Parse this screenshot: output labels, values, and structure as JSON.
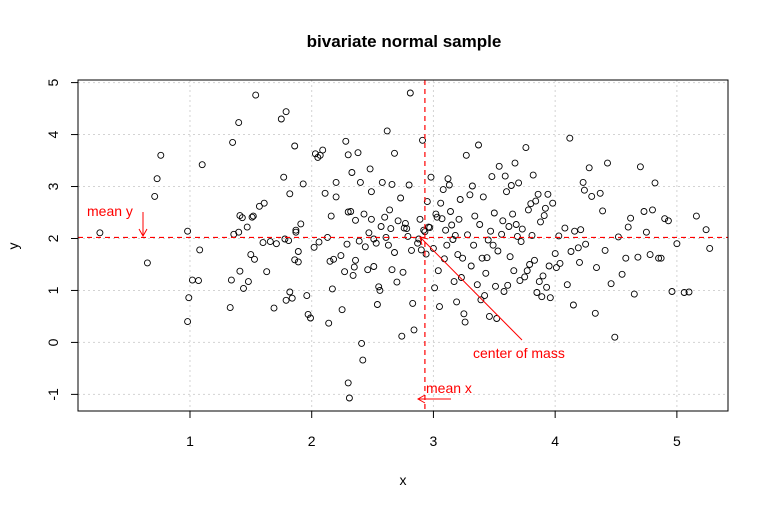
{
  "chart_data": {
    "type": "scatter",
    "title": "bivariate normal sample",
    "xlabel": "x",
    "ylabel": "y",
    "xlim": [
      0.08,
      5.42
    ],
    "ylim": [
      -1.32,
      5.05
    ],
    "x_ticks": [
      1,
      2,
      3,
      4,
      5
    ],
    "x_tick_labels": [
      "1",
      "2",
      "3",
      "4",
      "5"
    ],
    "y_ticks": [
      -1,
      0,
      1,
      2,
      3,
      4,
      5
    ],
    "y_tick_labels": [
      "-1",
      "0",
      "1",
      "2",
      "3",
      "4",
      "5"
    ],
    "grid": true,
    "point_color": "#000000",
    "annotation_color": "#ff0000",
    "mean_x": 2.93,
    "mean_y": 2.02,
    "annotations": {
      "mean_y_label": "mean y",
      "mean_x_label": "mean x",
      "center_label": "center of mass"
    },
    "points": [
      [
        0.26,
        2.11
      ],
      [
        0.65,
        1.53
      ],
      [
        0.71,
        2.81
      ],
      [
        0.73,
        3.15
      ],
      [
        0.76,
        3.6
      ],
      [
        0.98,
        2.14
      ],
      [
        0.98,
        0.4
      ],
      [
        0.99,
        0.86
      ],
      [
        1.02,
        1.2
      ],
      [
        1.07,
        1.19
      ],
      [
        1.1,
        3.42
      ],
      [
        1.08,
        1.78
      ],
      [
        1.33,
        0.67
      ],
      [
        1.34,
        1.2
      ],
      [
        1.35,
        3.85
      ],
      [
        1.36,
        2.08
      ],
      [
        1.4,
        2.12
      ],
      [
        1.4,
        4.23
      ],
      [
        1.41,
        2.44
      ],
      [
        1.43,
        2.4
      ],
      [
        1.41,
        1.37
      ],
      [
        1.44,
        1.04
      ],
      [
        1.48,
        1.17
      ],
      [
        1.47,
        2.22
      ],
      [
        1.5,
        1.69
      ],
      [
        1.51,
        2.41
      ],
      [
        1.52,
        2.43
      ],
      [
        1.53,
        1.6
      ],
      [
        1.54,
        4.76
      ],
      [
        1.57,
        2.62
      ],
      [
        1.6,
        1.92
      ],
      [
        1.61,
        2.68
      ],
      [
        1.63,
        1.36
      ],
      [
        1.66,
        1.94
      ],
      [
        1.69,
        0.66
      ],
      [
        1.71,
        1.9
      ],
      [
        1.75,
        4.3
      ],
      [
        1.77,
        3.18
      ],
      [
        1.78,
        1.99
      ],
      [
        1.79,
        4.44
      ],
      [
        1.79,
        0.81
      ],
      [
        1.81,
        1.96
      ],
      [
        1.82,
        2.86
      ],
      [
        1.82,
        0.97
      ],
      [
        1.84,
        0.85
      ],
      [
        1.86,
        3.78
      ],
      [
        1.86,
        1.59
      ],
      [
        1.87,
        2.12
      ],
      [
        1.87,
        2.16
      ],
      [
        1.89,
        1.75
      ],
      [
        1.89,
        1.55
      ],
      [
        1.91,
        2.28
      ],
      [
        1.93,
        3.05
      ],
      [
        1.96,
        0.9
      ],
      [
        1.97,
        0.54
      ],
      [
        1.99,
        0.47
      ],
      [
        2.02,
        1.83
      ],
      [
        2.03,
        3.63
      ],
      [
        2.05,
        3.56
      ],
      [
        2.06,
        1.93
      ],
      [
        2.07,
        3.6
      ],
      [
        2.09,
        3.7
      ],
      [
        2.11,
        2.87
      ],
      [
        2.13,
        2.02
      ],
      [
        2.14,
        0.37
      ],
      [
        2.15,
        1.56
      ],
      [
        2.16,
        2.43
      ],
      [
        2.17,
        1.03
      ],
      [
        2.18,
        1.6
      ],
      [
        2.2,
        2.8
      ],
      [
        2.2,
        3.08
      ],
      [
        2.24,
        1.67
      ],
      [
        2.25,
        0.63
      ],
      [
        2.27,
        1.36
      ],
      [
        2.28,
        3.87
      ],
      [
        2.29,
        1.89
      ],
      [
        2.3,
        2.51
      ],
      [
        2.3,
        3.61
      ],
      [
        2.3,
        -0.78
      ],
      [
        2.31,
        -1.07
      ],
      [
        2.32,
        2.52
      ],
      [
        2.33,
        3.27
      ],
      [
        2.34,
        1.29
      ],
      [
        2.35,
        1.45
      ],
      [
        2.36,
        1.58
      ],
      [
        2.36,
        2.35
      ],
      [
        2.38,
        3.65
      ],
      [
        2.39,
        1.95
      ],
      [
        2.4,
        3.08
      ],
      [
        2.41,
        -0.02
      ],
      [
        2.42,
        -0.34
      ],
      [
        2.43,
        2.47
      ],
      [
        2.44,
        1.84
      ],
      [
        2.46,
        1.4
      ],
      [
        2.47,
        2.11
      ],
      [
        2.48,
        3.34
      ],
      [
        2.49,
        2.9
      ],
      [
        2.49,
        2.37
      ],
      [
        2.51,
        1.99
      ],
      [
        2.51,
        1.46
      ],
      [
        2.53,
        1.91
      ],
      [
        2.54,
        0.73
      ],
      [
        2.55,
        1.07
      ],
      [
        2.56,
        1.0
      ],
      [
        2.57,
        2.23
      ],
      [
        2.58,
        3.08
      ],
      [
        2.6,
        2.41
      ],
      [
        2.61,
        2.02
      ],
      [
        2.62,
        4.07
      ],
      [
        2.63,
        1.87
      ],
      [
        2.64,
        2.55
      ],
      [
        2.65,
        2.19
      ],
      [
        2.66,
        3.04
      ],
      [
        2.66,
        1.4
      ],
      [
        2.68,
        1.73
      ],
      [
        2.68,
        3.64
      ],
      [
        2.7,
        1.16
      ],
      [
        2.71,
        2.34
      ],
      [
        2.73,
        2.78
      ],
      [
        2.74,
        0.12
      ],
      [
        2.75,
        1.35
      ],
      [
        2.76,
        2.2
      ],
      [
        2.77,
        2.29
      ],
      [
        2.78,
        2.19
      ],
      [
        2.79,
        2.04
      ],
      [
        2.8,
        3.03
      ],
      [
        2.81,
        4.8
      ],
      [
        2.82,
        1.77
      ],
      [
        2.83,
        0.75
      ],
      [
        2.84,
        0.24
      ],
      [
        2.87,
        1.91
      ],
      [
        2.88,
        1.99
      ],
      [
        2.89,
        2.37
      ],
      [
        2.9,
        1.78
      ],
      [
        2.91,
        3.89
      ],
      [
        2.92,
        2.16
      ],
      [
        2.93,
        2.13
      ],
      [
        2.94,
        1.7
      ],
      [
        2.95,
        2.71
      ],
      [
        2.96,
        2.22
      ],
      [
        2.97,
        2.21
      ],
      [
        2.98,
        3.18
      ],
      [
        3.0,
        1.81
      ],
      [
        3.01,
        1.05
      ],
      [
        3.02,
        2.47
      ],
      [
        3.03,
        2.41
      ],
      [
        3.04,
        1.38
      ],
      [
        3.05,
        0.69
      ],
      [
        3.06,
        2.68
      ],
      [
        3.07,
        2.38
      ],
      [
        3.08,
        2.94
      ],
      [
        3.09,
        1.61
      ],
      [
        3.1,
        2.16
      ],
      [
        3.11,
        1.87
      ],
      [
        3.12,
        3.15
      ],
      [
        3.13,
        3.03
      ],
      [
        3.14,
        2.52
      ],
      [
        3.15,
        2.26
      ],
      [
        3.16,
        1.98
      ],
      [
        3.17,
        1.17
      ],
      [
        3.18,
        2.06
      ],
      [
        3.19,
        0.78
      ],
      [
        3.2,
        1.69
      ],
      [
        3.21,
        2.37
      ],
      [
        3.22,
        2.75
      ],
      [
        3.23,
        1.25
      ],
      [
        3.24,
        1.62
      ],
      [
        3.25,
        0.55
      ],
      [
        3.26,
        0.39
      ],
      [
        3.27,
        3.6
      ],
      [
        3.28,
        2.07
      ],
      [
        3.3,
        2.84
      ],
      [
        3.31,
        1.47
      ],
      [
        3.32,
        3.01
      ],
      [
        3.33,
        1.87
      ],
      [
        3.34,
        2.43
      ],
      [
        3.36,
        1.11
      ],
      [
        3.37,
        3.8
      ],
      [
        3.38,
        2.27
      ],
      [
        3.39,
        0.82
      ],
      [
        3.4,
        1.62
      ],
      [
        3.41,
        2.8
      ],
      [
        3.42,
        0.9
      ],
      [
        3.43,
        1.33
      ],
      [
        3.44,
        1.63
      ],
      [
        3.45,
        1.97
      ],
      [
        3.46,
        0.5
      ],
      [
        3.47,
        2.14
      ],
      [
        3.48,
        3.19
      ],
      [
        3.49,
        1.87
      ],
      [
        3.5,
        2.49
      ],
      [
        3.51,
        1.08
      ],
      [
        3.52,
        0.46
      ],
      [
        3.53,
        1.76
      ],
      [
        3.54,
        3.39
      ],
      [
        3.56,
        2.08
      ],
      [
        3.57,
        2.34
      ],
      [
        3.58,
        0.98
      ],
      [
        3.59,
        3.2
      ],
      [
        3.6,
        2.9
      ],
      [
        3.61,
        1.1
      ],
      [
        3.62,
        2.23
      ],
      [
        3.63,
        1.65
      ],
      [
        3.64,
        3.02
      ],
      [
        3.65,
        2.47
      ],
      [
        3.66,
        1.38
      ],
      [
        3.67,
        3.45
      ],
      [
        3.68,
        2.27
      ],
      [
        3.69,
        2.04
      ],
      [
        3.7,
        3.07
      ],
      [
        3.71,
        1.19
      ],
      [
        3.72,
        1.94
      ],
      [
        3.73,
        2.18
      ],
      [
        3.75,
        1.26
      ],
      [
        3.76,
        3.75
      ],
      [
        3.77,
        1.38
      ],
      [
        3.78,
        2.55
      ],
      [
        3.79,
        1.5
      ],
      [
        3.8,
        2.67
      ],
      [
        3.81,
        2.06
      ],
      [
        3.82,
        3.22
      ],
      [
        3.83,
        1.58
      ],
      [
        3.84,
        2.72
      ],
      [
        3.85,
        0.96
      ],
      [
        3.86,
        2.85
      ],
      [
        3.87,
        1.17
      ],
      [
        3.88,
        2.32
      ],
      [
        3.89,
        0.88
      ],
      [
        3.9,
        1.28
      ],
      [
        3.91,
        2.44
      ],
      [
        3.92,
        2.58
      ],
      [
        3.93,
        1.06
      ],
      [
        3.94,
        2.85
      ],
      [
        3.95,
        1.47
      ],
      [
        3.96,
        0.86
      ],
      [
        3.98,
        2.68
      ],
      [
        4.0,
        1.71
      ],
      [
        4.01,
        1.44
      ],
      [
        4.03,
        2.05
      ],
      [
        4.04,
        1.52
      ],
      [
        4.08,
        2.2
      ],
      [
        4.1,
        1.11
      ],
      [
        4.12,
        3.93
      ],
      [
        4.13,
        1.75
      ],
      [
        4.15,
        0.72
      ],
      [
        4.16,
        2.14
      ],
      [
        4.19,
        1.82
      ],
      [
        4.2,
        1.54
      ],
      [
        4.21,
        2.17
      ],
      [
        4.23,
        3.08
      ],
      [
        4.24,
        2.93
      ],
      [
        4.25,
        1.89
      ],
      [
        4.28,
        3.36
      ],
      [
        4.3,
        2.81
      ],
      [
        4.33,
        0.56
      ],
      [
        4.34,
        1.44
      ],
      [
        4.37,
        2.87
      ],
      [
        4.39,
        2.53
      ],
      [
        4.41,
        1.77
      ],
      [
        4.43,
        3.45
      ],
      [
        4.46,
        1.13
      ],
      [
        4.49,
        0.1
      ],
      [
        4.52,
        2.03
      ],
      [
        4.55,
        1.31
      ],
      [
        4.58,
        1.62
      ],
      [
        4.6,
        2.22
      ],
      [
        4.62,
        2.39
      ],
      [
        4.65,
        0.93
      ],
      [
        4.68,
        1.64
      ],
      [
        4.7,
        3.38
      ],
      [
        4.73,
        2.52
      ],
      [
        4.75,
        2.12
      ],
      [
        4.78,
        1.69
      ],
      [
        4.8,
        2.55
      ],
      [
        4.82,
        3.07
      ],
      [
        4.85,
        1.62
      ],
      [
        4.87,
        1.62
      ],
      [
        4.9,
        2.38
      ],
      [
        4.93,
        2.34
      ],
      [
        4.96,
        0.98
      ],
      [
        5.0,
        1.9
      ],
      [
        5.06,
        0.96
      ],
      [
        5.1,
        0.97
      ],
      [
        5.16,
        2.43
      ],
      [
        5.24,
        2.17
      ],
      [
        5.27,
        1.81
      ]
    ]
  }
}
